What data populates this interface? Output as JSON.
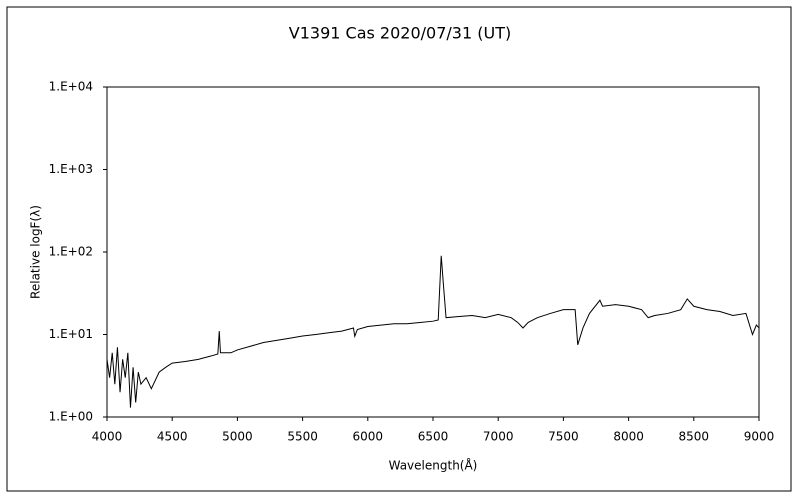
{
  "chart_data": {
    "type": "line",
    "title": "V1391 Cas    2020/07/31 (UT)",
    "x_label": "Wavelength(Å)",
    "y_label": "Relative logF(λ)",
    "yscale": "log",
    "xlim": [
      4000,
      9000
    ],
    "xticks": [
      4000,
      4500,
      5000,
      5500,
      6000,
      6500,
      7000,
      7500,
      8000,
      8500,
      9000
    ],
    "ylim": [
      1,
      10000
    ],
    "yticks": [
      {
        "value": 1,
        "label": "1.E+00"
      },
      {
        "value": 10,
        "label": "1.E+01"
      },
      {
        "value": 100,
        "label": "1.E+02"
      },
      {
        "value": 1000,
        "label": "1.E+03"
      },
      {
        "value": 10000,
        "label": "1.E+04"
      }
    ],
    "grid": false,
    "series": [
      {
        "color": "#000000",
        "x": [
          4000,
          4020,
          4040,
          4060,
          4080,
          4100,
          4120,
          4140,
          4160,
          4180,
          4200,
          4220,
          4240,
          4260,
          4300,
          4340,
          4400,
          4450,
          4500,
          4600,
          4700,
          4800,
          4850,
          4861,
          4870,
          4950,
          5000,
          5100,
          5200,
          5300,
          5400,
          5500,
          5600,
          5700,
          5800,
          5890,
          5900,
          5920,
          6000,
          6100,
          6200,
          6300,
          6400,
          6500,
          6540,
          6563,
          6580,
          6600,
          6700,
          6800,
          6900,
          7000,
          7100,
          7150,
          7190,
          7230,
          7300,
          7400,
          7500,
          7590,
          7610,
          7650,
          7700,
          7780,
          7800,
          7900,
          8000,
          8100,
          8150,
          8200,
          8300,
          8400,
          8450,
          8500,
          8600,
          8700,
          8800,
          8900,
          8950,
          8980,
          9000
        ],
        "values": [
          5,
          3,
          6,
          2.5,
          7,
          2,
          5,
          3,
          6,
          1.3,
          4,
          1.5,
          3.5,
          2.5,
          3,
          2.2,
          3.5,
          4,
          4.5,
          4.7,
          5,
          5.5,
          5.8,
          11,
          6,
          6,
          6.5,
          7.2,
          8,
          8.5,
          9,
          9.6,
          10,
          10.5,
          11,
          12,
          9.5,
          11.5,
          12.5,
          13,
          13.5,
          13.5,
          14,
          14.5,
          15,
          90,
          40,
          16,
          16.5,
          17,
          16,
          17.5,
          16,
          14,
          12,
          14,
          16,
          18,
          20,
          20,
          7.5,
          12,
          18,
          26,
          22,
          23,
          22,
          20,
          16,
          17,
          18,
          20,
          27,
          22,
          20,
          19,
          17,
          18,
          10,
          13,
          12
        ]
      }
    ]
  }
}
